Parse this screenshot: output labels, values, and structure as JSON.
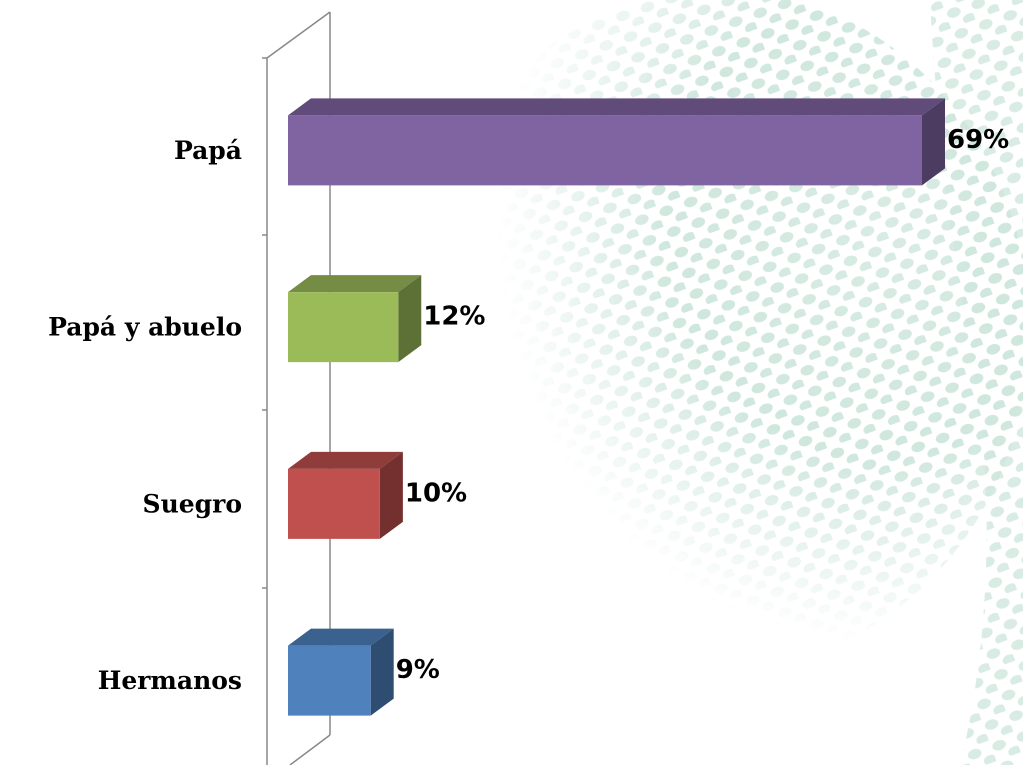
{
  "chart_data": {
    "type": "bar3d-horizontal",
    "categories": [
      "Papá",
      "Papá y abuelo",
      "Suegro",
      "Hermanos"
    ],
    "values": [
      69,
      12,
      10,
      9
    ],
    "value_labels": [
      "69%",
      "12%",
      "10%",
      "9%"
    ],
    "colors": [
      "#8064a2",
      "#9bbb59",
      "#c0504d",
      "#4f81bd"
    ]
  }
}
